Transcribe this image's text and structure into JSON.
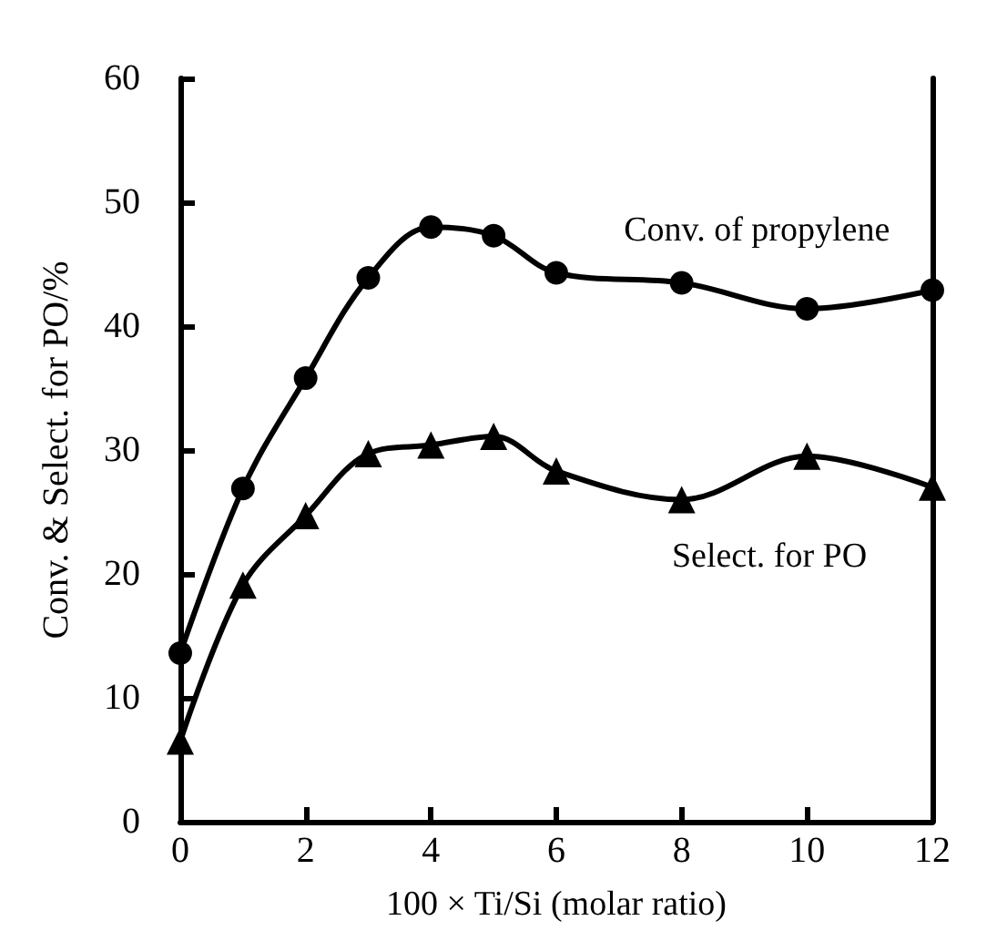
{
  "chart_data": {
    "type": "line",
    "xlabel": "100 × Ti/Si (molar ratio)",
    "ylabel": "Conv. & Select. for PO/%",
    "x": [
      0,
      1,
      2,
      3,
      4,
      5,
      6,
      8,
      10,
      12
    ],
    "series": [
      {
        "name": "Conv. of propylene",
        "color": "#000000",
        "marker": "circle",
        "values": [
          13.6,
          26.9,
          35.8,
          43.9,
          48.0,
          47.3,
          44.3,
          43.5,
          41.4,
          42.9
        ]
      },
      {
        "name": "Select. for PO",
        "color": "#000000",
        "marker": "triangle",
        "values": [
          6.5,
          19.1,
          24.7,
          29.7,
          30.4,
          31.1,
          28.3,
          26.0,
          29.5,
          27.0
        ]
      }
    ],
    "xlim": [
      0,
      12
    ],
    "xticks": [
      0,
      2,
      4,
      6,
      8,
      10,
      12
    ],
    "ylim": [
      0,
      60
    ],
    "yticks": [
      0,
      10,
      20,
      30,
      40,
      50,
      60
    ],
    "grid": false,
    "legend": false,
    "line_style": "solid"
  }
}
